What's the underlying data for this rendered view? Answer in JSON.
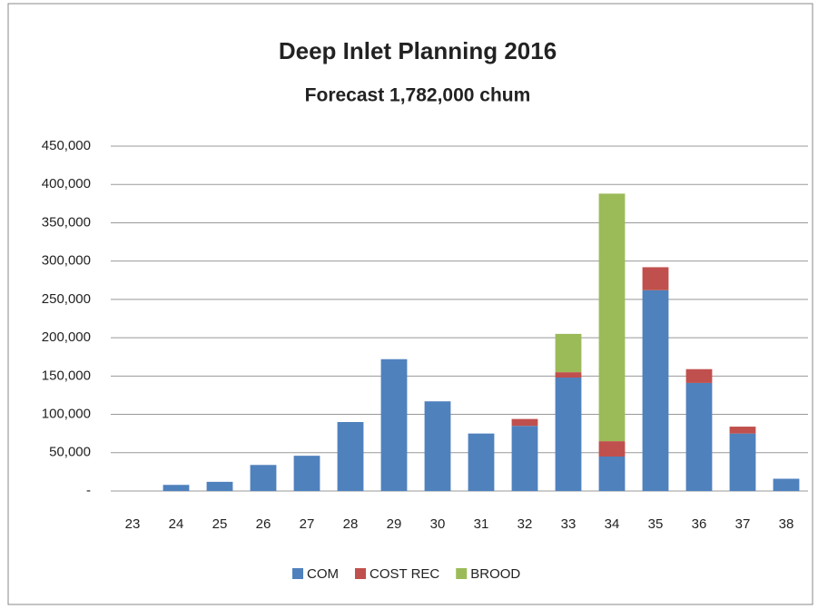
{
  "chart_data": {
    "type": "stacked_bar",
    "title": "Deep Inlet Planning 2016",
    "subtitle": "Forecast  1,782,000 chum",
    "categories": [
      "23",
      "24",
      "25",
      "26",
      "27",
      "28",
      "29",
      "30",
      "31",
      "32",
      "33",
      "34",
      "35",
      "36",
      "37",
      "38"
    ],
    "series": [
      {
        "name": "COM",
        "color": "#4f81bd",
        "values": [
          0,
          8000,
          12000,
          34000,
          46000,
          90000,
          172000,
          117000,
          75000,
          85000,
          148000,
          45000,
          262000,
          141000,
          75000,
          16000
        ]
      },
      {
        "name": "COST REC",
        "color": "#c0504d",
        "values": [
          0,
          0,
          0,
          0,
          0,
          0,
          0,
          0,
          0,
          9000,
          7000,
          20000,
          30000,
          18000,
          9000,
          0
        ]
      },
      {
        "name": "BROOD",
        "color": "#9bbb59",
        "values": [
          0,
          0,
          0,
          0,
          0,
          0,
          0,
          0,
          0,
          0,
          50000,
          323000,
          0,
          0,
          0,
          0
        ]
      }
    ],
    "ylim": [
      0,
      450000
    ],
    "yticks": [
      {
        "value": 0,
        "label": "-"
      },
      {
        "value": 50000,
        "label": "50,000"
      },
      {
        "value": 100000,
        "label": "100,000"
      },
      {
        "value": 150000,
        "label": "150,000"
      },
      {
        "value": 200000,
        "label": "200,000"
      },
      {
        "value": 250000,
        "label": "250,000"
      },
      {
        "value": 300000,
        "label": "300,000"
      },
      {
        "value": 350000,
        "label": "350,000"
      },
      {
        "value": 400000,
        "label": "400,000"
      },
      {
        "value": 450000,
        "label": "450,000"
      }
    ],
    "grid": true,
    "legend": "bottom"
  }
}
